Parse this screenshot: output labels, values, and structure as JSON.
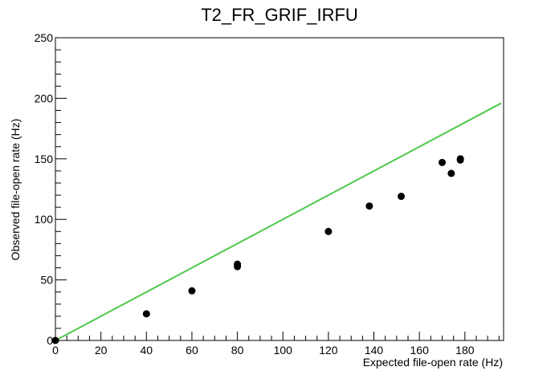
{
  "chart_data": {
    "type": "scatter",
    "title": "T2_FR_GRIF_IRFU",
    "xlabel": "Expected file-open rate (Hz)",
    "ylabel": "Observed file-open rate (Hz)",
    "xlim": [
      0,
      197
    ],
    "ylim": [
      0,
      250
    ],
    "x_ticks": [
      0,
      20,
      40,
      60,
      80,
      100,
      120,
      140,
      160,
      180
    ],
    "y_ticks": [
      0,
      50,
      100,
      150,
      200,
      250
    ],
    "grid": false,
    "series": [
      {
        "type": "scatter",
        "color": "#000000",
        "x": [
          0,
          40,
          60,
          80,
          80,
          120,
          138,
          152,
          170,
          174,
          178,
          178
        ],
        "y": [
          0,
          22,
          41,
          61,
          63,
          90,
          111,
          119,
          147,
          138,
          150,
          149
        ]
      },
      {
        "type": "line",
        "color": "#4ec94a",
        "x": [
          0,
          196
        ],
        "y": [
          0,
          196
        ]
      }
    ]
  }
}
